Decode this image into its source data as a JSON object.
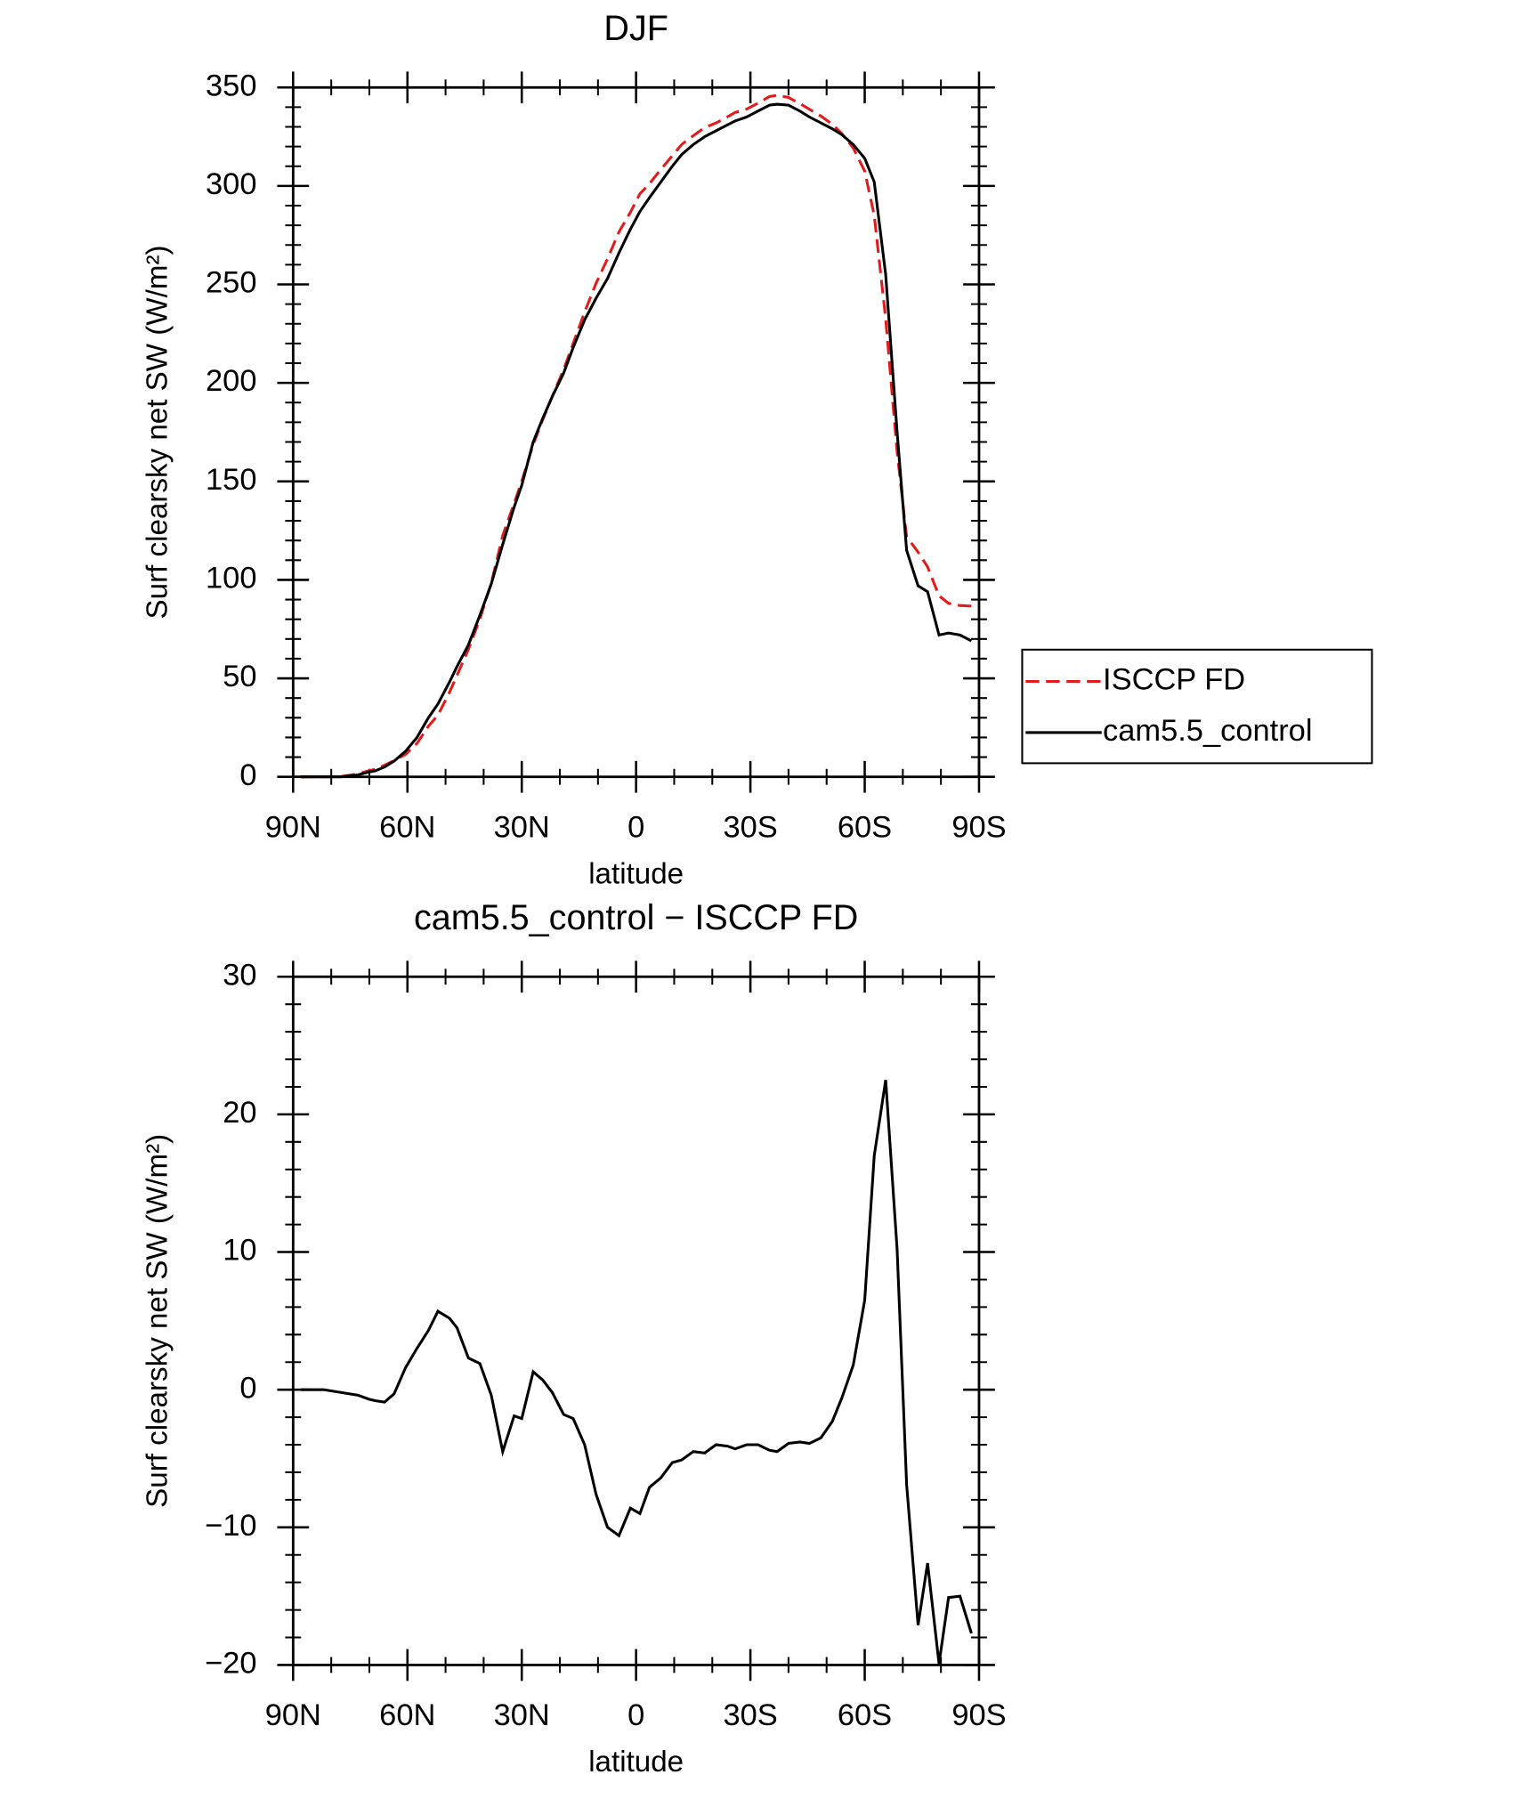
{
  "chart_data": [
    {
      "type": "line",
      "title": "DJF",
      "xlabel": "latitude",
      "ylabel": "Surf clearsky net SW (W/m²)",
      "x": [
        88,
        82,
        77.5,
        73,
        70,
        68.5,
        66,
        63.5,
        60.5,
        57.5,
        54.5,
        52,
        49,
        47,
        44,
        41,
        38,
        35,
        32,
        30,
        27,
        24.5,
        22,
        19,
        16.5,
        13.5,
        10.5,
        7.5,
        4.5,
        1.5,
        -1,
        -3.5,
        -6.5,
        -9.5,
        -12,
        -15,
        -18,
        -21,
        -24,
        -26,
        -29,
        -32,
        -35,
        -37,
        -40,
        -43,
        -45.5,
        -48.5,
        -51.5,
        -54,
        -57,
        -60,
        -62.5,
        -65.5,
        -68.5,
        -71,
        -74,
        -76.5,
        -79.5,
        -82,
        -85,
        -88
      ],
      "series": [
        {
          "name": "ISCCP FD",
          "color": "#e41a1c",
          "dash": true,
          "values": [
            0,
            0,
            0.2,
            1.4,
            3.2,
            3.8,
            5.9,
            8.3,
            11.4,
            17,
            25.7,
            31.3,
            42.8,
            51.5,
            64.7,
            80.1,
            98.4,
            122.5,
            138.9,
            150.1,
            168.7,
            181.3,
            193.2,
            206.8,
            220.1,
            236,
            250.6,
            263,
            276.6,
            286.6,
            296,
            301.1,
            308.4,
            315.3,
            321.1,
            325.5,
            329.6,
            332,
            335.1,
            337.3,
            339,
            342,
            345.4,
            346,
            344.9,
            341.8,
            338.9,
            335.5,
            331.3,
            326.6,
            319.2,
            307.5,
            285,
            232.5,
            164.8,
            121.9,
            114.1,
            106.6,
            91.9,
            88.1,
            87,
            86.7
          ]
        },
        {
          "name": "cam5.5_control",
          "color": "#000000",
          "dash": false,
          "values": [
            0,
            0,
            0,
            1,
            2.5,
            3,
            5,
            8,
            13,
            20,
            30,
            37,
            48,
            56,
            67,
            82,
            98,
            118,
            137,
            148,
            170,
            182,
            193,
            205,
            218,
            232,
            243,
            253,
            266,
            278,
            287,
            294,
            302,
            310,
            316,
            321,
            325,
            328,
            331,
            333,
            335,
            338,
            341,
            341.5,
            341,
            338,
            335,
            332,
            329,
            326,
            321,
            314,
            302,
            255,
            175,
            115,
            97,
            94,
            72,
            73,
            72,
            69
          ]
        }
      ],
      "xlim": [
        90,
        -90
      ],
      "xticks": [
        {
          "value": 90,
          "label": "90N"
        },
        {
          "value": 60,
          "label": "60N"
        },
        {
          "value": 30,
          "label": "30N"
        },
        0,
        {
          "value": -30,
          "label": "30S"
        },
        {
          "value": -60,
          "label": "60S"
        },
        {
          "value": -90,
          "label": "90S"
        }
      ],
      "ylim": [
        0,
        350
      ],
      "yticks": [
        0,
        50,
        100,
        150,
        200,
        250,
        300,
        350
      ],
      "legend": "right"
    },
    {
      "type": "line",
      "title": "cam5.5_control − ISCCP FD",
      "xlabel": "latitude",
      "ylabel": "Surf clearsky net SW (W/m²)",
      "x": [
        88,
        82,
        77.5,
        73,
        70,
        68.5,
        66,
        63.5,
        60.5,
        57.5,
        54.5,
        52,
        49,
        47,
        44,
        41,
        38,
        35,
        32,
        30,
        27,
        24.5,
        22,
        19,
        16.5,
        13.5,
        10.5,
        7.5,
        4.5,
        1.5,
        -1,
        -3.5,
        -6.5,
        -9.5,
        -12,
        -15,
        -18,
        -21,
        -24,
        -26,
        -29,
        -32,
        -35,
        -37,
        -40,
        -43,
        -45.5,
        -48.5,
        -51.5,
        -54,
        -57,
        -60,
        -62.5,
        -65.5,
        -68.5,
        -71,
        -74,
        -76.5,
        -79.5,
        -82,
        -85,
        -88
      ],
      "series": [
        {
          "color": "#000000",
          "dash": false,
          "values": [
            0,
            0,
            -0.2,
            -0.4,
            -0.7,
            -0.8,
            -0.9,
            -0.3,
            1.6,
            3.0,
            4.3,
            5.7,
            5.2,
            4.5,
            2.3,
            1.9,
            -0.4,
            -4.5,
            -1.9,
            -2.1,
            1.3,
            0.7,
            -0.2,
            -1.8,
            -2.1,
            -4.0,
            -7.6,
            -10.0,
            -10.6,
            -8.6,
            -9.0,
            -7.1,
            -6.4,
            -5.3,
            -5.1,
            -4.5,
            -4.6,
            -4.0,
            -4.1,
            -4.3,
            -4.0,
            -4.0,
            -4.4,
            -4.5,
            -3.9,
            -3.8,
            -3.9,
            -3.5,
            -2.3,
            -0.6,
            1.8,
            6.5,
            17.0,
            22.5,
            10.2,
            -6.9,
            -17.1,
            -12.6,
            -19.9,
            -15.1,
            -15.0,
            -17.7
          ]
        }
      ],
      "xlim": [
        90,
        -90
      ],
      "xticks": [
        {
          "value": 90,
          "label": "90N"
        },
        {
          "value": 60,
          "label": "60N"
        },
        {
          "value": 30,
          "label": "30N"
        },
        0,
        {
          "value": -30,
          "label": "30S"
        },
        {
          "value": -60,
          "label": "60S"
        },
        {
          "value": -90,
          "label": "90S"
        }
      ],
      "ylim": [
        -20,
        30
      ],
      "yticks": [
        {
          "value": -20,
          "label": "−20"
        },
        {
          "value": -10,
          "label": "−10"
        },
        0,
        10,
        20,
        30
      ]
    }
  ]
}
